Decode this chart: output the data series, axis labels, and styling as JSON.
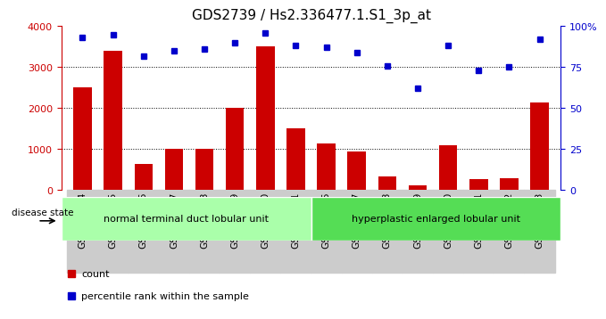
{
  "title": "GDS2739 / Hs2.336477.1.S1_3p_at",
  "samples": [
    "GSM177454",
    "GSM177455",
    "GSM177456",
    "GSM177457",
    "GSM177458",
    "GSM177459",
    "GSM177460",
    "GSM177461",
    "GSM177446",
    "GSM177447",
    "GSM177448",
    "GSM177449",
    "GSM177450",
    "GSM177451",
    "GSM177452",
    "GSM177453"
  ],
  "counts": [
    2500,
    3400,
    650,
    1000,
    1000,
    2000,
    3500,
    1500,
    1150,
    950,
    340,
    110,
    1100,
    270,
    290,
    2150
  ],
  "percentiles": [
    93,
    95,
    82,
    85,
    86,
    90,
    96,
    88,
    87,
    84,
    76,
    62,
    88,
    73,
    75,
    92
  ],
  "group1_label": "normal terminal duct lobular unit",
  "group2_label": "hyperplastic enlarged lobular unit",
  "group1_count": 8,
  "group2_count": 8,
  "bar_color": "#cc0000",
  "dot_color": "#0000cc",
  "left_ylabel": "",
  "right_ylabel": "",
  "ylim_left": [
    0,
    4000
  ],
  "ylim_right": [
    0,
    100
  ],
  "yticks_left": [
    0,
    1000,
    2000,
    3000,
    4000
  ],
  "yticks_right": [
    0,
    25,
    50,
    75,
    100
  ],
  "ytick_labels_right": [
    "0",
    "25",
    "50",
    "75",
    "100%"
  ],
  "grid_values": [
    1000,
    2000,
    3000
  ],
  "disease_state_label": "disease state",
  "legend_count_label": "count",
  "legend_pct_label": "percentile rank within the sample",
  "group1_color": "#aaffaa",
  "group2_color": "#55dd55",
  "tick_area_color": "#cccccc",
  "background_color": "#ffffff",
  "title_fontsize": 11,
  "tick_fontsize": 7.5,
  "axis_color_left": "#cc0000",
  "axis_color_right": "#0000cc"
}
